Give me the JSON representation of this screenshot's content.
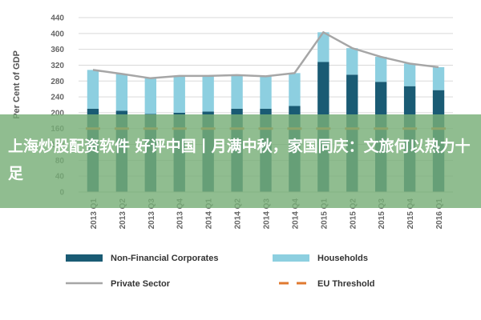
{
  "chart_data": {
    "type": "bar",
    "ylabel": "Per Cent of GDP",
    "ylim": [
      0,
      440
    ],
    "yticks": [
      0,
      40,
      80,
      120,
      160,
      200,
      240,
      280,
      320,
      360,
      400,
      440
    ],
    "categories": [
      "2013 Q1",
      "2013 Q2",
      "2013 Q3",
      "2013 Q4",
      "2014 Q1",
      "2014 Q2",
      "2014 Q3",
      "2014 Q4",
      "2015 Q1",
      "2015 Q2",
      "2015 Q3",
      "2015 Q4",
      "2016 Q1"
    ],
    "series": [
      {
        "name": "Non-Financial Corporates",
        "kind": "stacked-bar",
        "color": "#1a5b74",
        "values": [
          210,
          205,
          197,
          200,
          203,
          210,
          210,
          217,
          328,
          296,
          278,
          267,
          257
        ]
      },
      {
        "name": "Households",
        "kind": "stacked-bar",
        "color": "#8dcfe0",
        "values": [
          98,
          93,
          90,
          93,
          90,
          85,
          82,
          83,
          75,
          67,
          63,
          57,
          58
        ]
      },
      {
        "name": "Private Sector",
        "kind": "line",
        "color": "#a6a6a6",
        "values": [
          308,
          298,
          287,
          293,
          293,
          295,
          292,
          300,
          403,
          363,
          341,
          324,
          315
        ]
      },
      {
        "name": "EU Threshold",
        "kind": "dashed-line",
        "color": "#e07a30",
        "values": [
          160,
          160,
          160,
          160,
          160,
          160,
          160,
          160,
          160,
          160,
          160,
          160,
          160
        ]
      }
    ],
    "legend_placement": "bottom",
    "grid": true
  },
  "overlay": {
    "banner_text": "上海炒股配资软件 好评中国丨月满中秋，家国同庆：文旅何以热力十足"
  }
}
